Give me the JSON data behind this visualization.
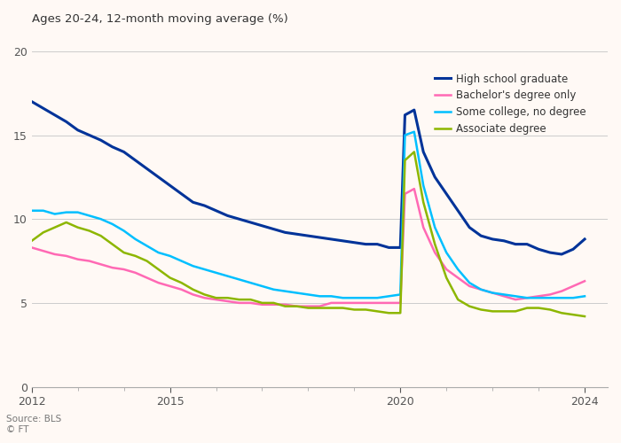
{
  "title": "Ages 20-24, 12-month moving average (%)",
  "source_text": "Source: BLS\n© FT",
  "xlim": [
    2012,
    2024.5
  ],
  "ylim": [
    0,
    21
  ],
  "yticks": [
    0,
    5,
    10,
    15,
    20
  ],
  "xticks": [
    2012,
    2015,
    2020,
    2024
  ],
  "background_color": "#FFF9F5",
  "grid_color": "#cccccc",
  "series": {
    "high_school": {
      "label": "High school graduate",
      "color": "#003399",
      "data": {
        "years": [
          2012.0,
          2012.25,
          2012.5,
          2012.75,
          2013.0,
          2013.25,
          2013.5,
          2013.75,
          2014.0,
          2014.25,
          2014.5,
          2014.75,
          2015.0,
          2015.25,
          2015.5,
          2015.75,
          2016.0,
          2016.25,
          2016.5,
          2016.75,
          2017.0,
          2017.25,
          2017.5,
          2017.75,
          2018.0,
          2018.25,
          2018.5,
          2018.75,
          2019.0,
          2019.25,
          2019.5,
          2019.75,
          2020.0,
          2020.1,
          2020.3,
          2020.5,
          2020.75,
          2021.0,
          2021.25,
          2021.5,
          2021.75,
          2022.0,
          2022.25,
          2022.5,
          2022.75,
          2023.0,
          2023.25,
          2023.5,
          2023.75,
          2024.0
        ],
        "values": [
          17.0,
          16.6,
          16.2,
          15.8,
          15.3,
          15.0,
          14.7,
          14.3,
          14.0,
          13.5,
          13.0,
          12.5,
          12.0,
          11.5,
          11.0,
          10.8,
          10.5,
          10.2,
          10.0,
          9.8,
          9.6,
          9.4,
          9.2,
          9.1,
          9.0,
          8.9,
          8.8,
          8.7,
          8.6,
          8.5,
          8.5,
          8.3,
          8.3,
          16.2,
          16.5,
          14.0,
          12.5,
          11.5,
          10.5,
          9.5,
          9.0,
          8.8,
          8.7,
          8.5,
          8.5,
          8.2,
          8.0,
          7.9,
          8.2,
          8.8
        ]
      }
    },
    "bachelors": {
      "label": "Bachelor's degree only",
      "color": "#ff69b4",
      "data": {
        "years": [
          2012.0,
          2012.25,
          2012.5,
          2012.75,
          2013.0,
          2013.25,
          2013.5,
          2013.75,
          2014.0,
          2014.25,
          2014.5,
          2014.75,
          2015.0,
          2015.25,
          2015.5,
          2015.75,
          2016.0,
          2016.25,
          2016.5,
          2016.75,
          2017.0,
          2017.25,
          2017.5,
          2017.75,
          2018.0,
          2018.25,
          2018.5,
          2018.75,
          2019.0,
          2019.25,
          2019.5,
          2019.75,
          2020.0,
          2020.1,
          2020.3,
          2020.5,
          2020.75,
          2021.0,
          2021.25,
          2021.5,
          2021.75,
          2022.0,
          2022.25,
          2022.5,
          2022.75,
          2023.0,
          2023.25,
          2023.5,
          2023.75,
          2024.0
        ],
        "values": [
          8.3,
          8.1,
          7.9,
          7.8,
          7.6,
          7.5,
          7.3,
          7.1,
          7.0,
          6.8,
          6.5,
          6.2,
          6.0,
          5.8,
          5.5,
          5.3,
          5.2,
          5.1,
          5.0,
          5.0,
          4.9,
          4.9,
          4.9,
          4.8,
          4.8,
          4.8,
          5.0,
          5.0,
          5.0,
          5.0,
          5.0,
          5.0,
          5.0,
          11.5,
          11.8,
          9.5,
          8.0,
          7.0,
          6.5,
          6.0,
          5.8,
          5.6,
          5.4,
          5.2,
          5.3,
          5.4,
          5.5,
          5.7,
          6.0,
          6.3
        ]
      }
    },
    "some_college": {
      "label": "Some college, no degree",
      "color": "#00bfff",
      "data": {
        "years": [
          2012.0,
          2012.25,
          2012.5,
          2012.75,
          2013.0,
          2013.25,
          2013.5,
          2013.75,
          2014.0,
          2014.25,
          2014.5,
          2014.75,
          2015.0,
          2015.25,
          2015.5,
          2015.75,
          2016.0,
          2016.25,
          2016.5,
          2016.75,
          2017.0,
          2017.25,
          2017.5,
          2017.75,
          2018.0,
          2018.25,
          2018.5,
          2018.75,
          2019.0,
          2019.25,
          2019.5,
          2019.75,
          2020.0,
          2020.1,
          2020.3,
          2020.5,
          2020.75,
          2021.0,
          2021.25,
          2021.5,
          2021.75,
          2022.0,
          2022.25,
          2022.5,
          2022.75,
          2023.0,
          2023.25,
          2023.5,
          2023.75,
          2024.0
        ],
        "values": [
          10.5,
          10.5,
          10.3,
          10.4,
          10.4,
          10.2,
          10.0,
          9.7,
          9.3,
          8.8,
          8.4,
          8.0,
          7.8,
          7.5,
          7.2,
          7.0,
          6.8,
          6.6,
          6.4,
          6.2,
          6.0,
          5.8,
          5.7,
          5.6,
          5.5,
          5.4,
          5.4,
          5.3,
          5.3,
          5.3,
          5.3,
          5.4,
          5.5,
          15.0,
          15.2,
          12.0,
          9.5,
          8.0,
          7.0,
          6.2,
          5.8,
          5.6,
          5.5,
          5.4,
          5.3,
          5.3,
          5.3,
          5.3,
          5.3,
          5.4
        ]
      }
    },
    "associate": {
      "label": "Associate degree",
      "color": "#8db600",
      "data": {
        "years": [
          2012.0,
          2012.25,
          2012.5,
          2012.75,
          2013.0,
          2013.25,
          2013.5,
          2013.75,
          2014.0,
          2014.25,
          2014.5,
          2014.75,
          2015.0,
          2015.25,
          2015.5,
          2015.75,
          2016.0,
          2016.25,
          2016.5,
          2016.75,
          2017.0,
          2017.25,
          2017.5,
          2017.75,
          2018.0,
          2018.25,
          2018.5,
          2018.75,
          2019.0,
          2019.25,
          2019.5,
          2019.75,
          2020.0,
          2020.1,
          2020.3,
          2020.5,
          2020.75,
          2021.0,
          2021.25,
          2021.5,
          2021.75,
          2022.0,
          2022.25,
          2022.5,
          2022.75,
          2023.0,
          2023.25,
          2023.5,
          2023.75,
          2024.0
        ],
        "values": [
          8.7,
          9.2,
          9.5,
          9.8,
          9.5,
          9.3,
          9.0,
          8.5,
          8.0,
          7.8,
          7.5,
          7.0,
          6.5,
          6.2,
          5.8,
          5.5,
          5.3,
          5.3,
          5.2,
          5.2,
          5.0,
          5.0,
          4.8,
          4.8,
          4.7,
          4.7,
          4.7,
          4.7,
          4.6,
          4.6,
          4.5,
          4.4,
          4.4,
          13.5,
          14.0,
          11.0,
          8.5,
          6.5,
          5.2,
          4.8,
          4.6,
          4.5,
          4.5,
          4.5,
          4.7,
          4.7,
          4.6,
          4.4,
          4.3,
          4.2
        ]
      }
    }
  }
}
